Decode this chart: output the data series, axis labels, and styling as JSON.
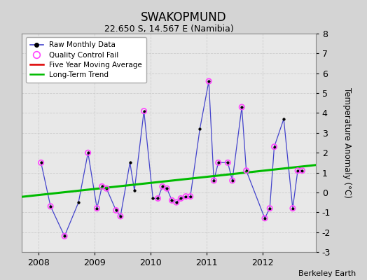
{
  "title": "SWAKOPMUND",
  "subtitle": "22.650 S, 14.567 E (Namibia)",
  "ylabel": "Temperature Anomaly (°C)",
  "credit": "Berkeley Earth",
  "ylim": [
    -3,
    8
  ],
  "yticks": [
    -3,
    -2,
    -1,
    0,
    1,
    2,
    3,
    4,
    5,
    6,
    7,
    8
  ],
  "xlim": [
    2007.7,
    2012.95
  ],
  "raw_x": [
    2008.04,
    2008.21,
    2008.46,
    2008.71,
    2008.88,
    2009.04,
    2009.13,
    2009.21,
    2009.38,
    2009.46,
    2009.63,
    2009.71,
    2009.88,
    2010.04,
    2010.13,
    2010.21,
    2010.29,
    2010.38,
    2010.46,
    2010.54,
    2010.63,
    2010.71,
    2010.88,
    2011.04,
    2011.13,
    2011.21,
    2011.38,
    2011.46,
    2011.63,
    2011.71,
    2012.04,
    2012.13,
    2012.21,
    2012.38,
    2012.54,
    2012.63,
    2012.71
  ],
  "raw_y": [
    1.5,
    -0.7,
    -2.2,
    -0.5,
    2.0,
    -0.8,
    0.3,
    0.2,
    -0.9,
    -1.2,
    1.5,
    0.1,
    4.1,
    -0.3,
    -0.3,
    0.3,
    0.2,
    -0.4,
    -0.5,
    -0.3,
    -0.2,
    -0.2,
    3.2,
    5.6,
    0.6,
    1.5,
    1.5,
    0.6,
    4.3,
    1.1,
    -1.3,
    -0.8,
    2.3,
    3.7,
    -0.8,
    1.1,
    1.1
  ],
  "qc_fail_x": [
    2008.04,
    2008.21,
    2008.46,
    2008.88,
    2009.04,
    2009.13,
    2009.21,
    2009.38,
    2009.46,
    2009.88,
    2010.13,
    2010.21,
    2010.29,
    2010.38,
    2010.46,
    2010.54,
    2010.63,
    2010.71,
    2011.04,
    2011.13,
    2011.21,
    2011.38,
    2011.46,
    2011.63,
    2011.71,
    2012.04,
    2012.13,
    2012.21,
    2012.54,
    2012.63,
    2012.71
  ],
  "qc_fail_y": [
    1.5,
    -0.7,
    -2.2,
    2.0,
    -0.8,
    0.3,
    0.2,
    -0.9,
    -1.2,
    4.1,
    -0.3,
    0.3,
    0.2,
    -0.4,
    -0.5,
    -0.3,
    -0.2,
    -0.2,
    5.6,
    0.6,
    1.5,
    1.5,
    0.6,
    4.3,
    1.1,
    -1.3,
    -0.8,
    2.3,
    -0.8,
    1.1,
    1.1
  ],
  "trend_x": [
    2007.7,
    2012.95
  ],
  "trend_y": [
    -0.22,
    1.38
  ],
  "line_color": "#4444cc",
  "marker_color": "#000000",
  "qc_color": "#ff44ff",
  "trend_color": "#00bb00",
  "ma_color": "#dd0000",
  "bg_color": "#e8e8e8",
  "fig_bg_color": "#d4d4d4"
}
